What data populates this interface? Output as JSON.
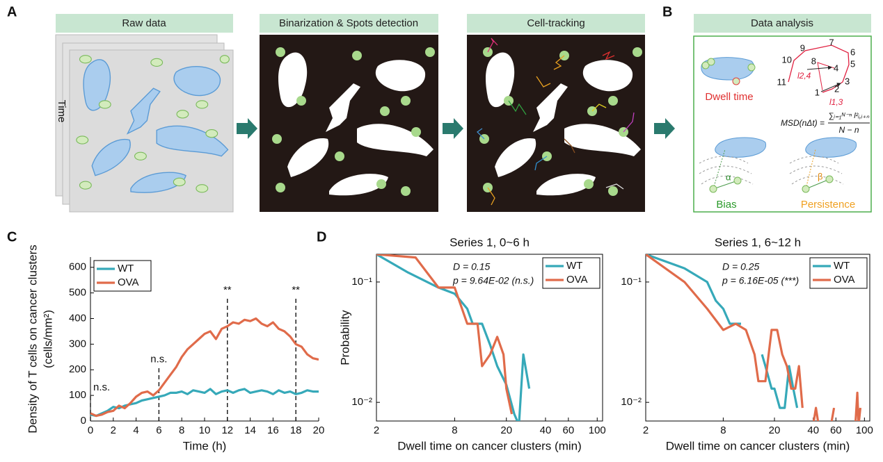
{
  "figure": {
    "panel_labels": [
      "A",
      "B",
      "C",
      "D"
    ],
    "steps": [
      "Raw data",
      "Binarization & Spots detection",
      "Cell-tracking",
      "Data analysis"
    ],
    "time_label": "Time",
    "analysis": {
      "dwell_time": "Dwell time",
      "bias": "Bias",
      "persistence": "Persistence",
      "msd_left": "MSD(nΔt) =",
      "msd_numerator": "∑ᵢ₌₁ᴺ⁻ⁿ l²ᵢ,ᵢ₊ₙ",
      "msd_denominator": "N − n",
      "track_numbers": [
        "1",
        "2",
        "3",
        "4",
        "5",
        "6",
        "7",
        "8",
        "9",
        "10",
        "11"
      ],
      "l24": "l2,4",
      "l13": "l1,3",
      "alpha": "α",
      "beta": "β"
    }
  },
  "chart_data": [
    {
      "type": "line",
      "xlabel": "Time (h)",
      "ylabel": [
        "Density of T cells on cancer clusters",
        "(cells/mm²)"
      ],
      "x": [
        0,
        0.5,
        1,
        1.5,
        2,
        2.5,
        3,
        3.5,
        4,
        4.5,
        5,
        5.5,
        6,
        6.5,
        7,
        7.5,
        8,
        8.5,
        9,
        9.5,
        10,
        10.5,
        11,
        11.5,
        12,
        12.5,
        13,
        13.5,
        14,
        14.5,
        15,
        15.5,
        16,
        16.5,
        17,
        17.5,
        18,
        18.5,
        19,
        19.5,
        20
      ],
      "series": [
        {
          "name": "WT",
          "color": "#36a9b9",
          "values": [
            25,
            20,
            30,
            40,
            55,
            50,
            60,
            65,
            70,
            80,
            85,
            90,
            95,
            100,
            110,
            110,
            115,
            105,
            120,
            115,
            110,
            125,
            105,
            115,
            120,
            110,
            120,
            125,
            110,
            115,
            120,
            115,
            105,
            120,
            110,
            115,
            105,
            110,
            120,
            115,
            115
          ]
        },
        {
          "name": "OVA",
          "color": "#e06b4a",
          "values": [
            30,
            20,
            25,
            35,
            40,
            60,
            50,
            70,
            95,
            110,
            115,
            100,
            120,
            150,
            180,
            210,
            250,
            280,
            300,
            320,
            340,
            350,
            320,
            360,
            370,
            385,
            380,
            395,
            390,
            400,
            380,
            370,
            385,
            360,
            350,
            330,
            300,
            290,
            260,
            245,
            240
          ]
        }
      ],
      "xlim": [
        0,
        20
      ],
      "ylim": [
        0,
        640
      ],
      "xticks": [
        0,
        2,
        4,
        6,
        8,
        10,
        12,
        14,
        16,
        18,
        20
      ],
      "yticks": [
        0,
        100,
        200,
        300,
        400,
        500,
        600
      ],
      "legend": "upper left",
      "box": false,
      "annotations": [
        {
          "label": "n.s.",
          "x": 0,
          "y": 130
        },
        {
          "label": "n.s.",
          "x": 6,
          "y": 240
        },
        {
          "label": "**",
          "x": 12,
          "y": 510
        },
        {
          "label": "**",
          "x": 18,
          "y": 510
        }
      ]
    },
    {
      "type": "line",
      "title": "Series 1, 0~6 h",
      "stats": [
        "D = 0.15",
        "p = 9.64E-02 (n.s.)"
      ],
      "xlabel": "Dwell time on cancer clusters (min)",
      "ylabel": [
        "Probability"
      ],
      "series": [
        {
          "name": "WT",
          "color": "#36a9b9",
          "x": [
            2,
            3.5,
            6,
            8,
            10,
            11,
            13,
            15,
            17,
            20,
            23,
            25,
            27,
            30
          ],
          "values": [
            0.17,
            0.12,
            0.09,
            0.08,
            0.06,
            0.045,
            0.045,
            0.03,
            0.02,
            0.014,
            0.008,
            0.0065,
            0.025,
            0.013
          ]
        },
        {
          "name": "OVA",
          "color": "#e06b4a",
          "x": [
            2,
            4,
            6,
            8,
            10,
            12,
            13,
            15,
            17,
            19,
            20,
            22
          ],
          "values": [
            0.17,
            0.16,
            0.09,
            0.09,
            0.045,
            0.045,
            0.02,
            0.025,
            0.035,
            0.025,
            0.013,
            0.008
          ]
        }
      ],
      "xlim": [
        2,
        110
      ],
      "ylim": [
        0.007,
        0.17
      ],
      "log_x": true,
      "log_y": true,
      "xticks": [
        2,
        8,
        20,
        40,
        60,
        100
      ],
      "yticks": [
        {
          "value": 0.01,
          "label": "10⁻²"
        },
        {
          "value": 0.1,
          "label": "10⁻¹"
        }
      ],
      "legend": "upper right",
      "box": true
    },
    {
      "type": "line",
      "title": "Series 1, 6~12 h",
      "stats": [
        "D = 0.25",
        "p = 6.16E-05 (***)"
      ],
      "xlabel": "Dwell time on cancer clusters (min)",
      "series": [
        {
          "name": "WT",
          "color": "#36a9b9",
          "x": [
            2,
            4,
            6,
            7,
            8,
            9,
            11,
            null,
            16,
            17,
            19,
            20,
            22,
            24,
            26,
            28,
            30
          ],
          "values": [
            0.17,
            0.13,
            0.1,
            0.07,
            0.06,
            0.045,
            0.045,
            null,
            0.025,
            0.02,
            0.013,
            0.013,
            0.009,
            0.009,
            0.02,
            0.013,
            0.009
          ]
        },
        {
          "name": "OVA",
          "color": "#e06b4a",
          "x": [
            2,
            4,
            6,
            8,
            10,
            12,
            14,
            15,
            17,
            19,
            21,
            23,
            25,
            27,
            29,
            31,
            33,
            null,
            40,
            42,
            44,
            null,
            55,
            58,
            null,
            85,
            88,
            90,
            93
          ],
          "values": [
            0.17,
            0.1,
            0.06,
            0.04,
            0.045,
            0.04,
            0.025,
            0.015,
            0.015,
            0.04,
            0.04,
            0.025,
            0.02,
            0.013,
            0.013,
            0.02,
            0.009,
            null,
            0.0065,
            0.009,
            0.0065,
            null,
            0.0065,
            0.009,
            null,
            0.0065,
            0.012,
            0.0065,
            0.009
          ]
        }
      ],
      "xlim": [
        2,
        110
      ],
      "ylim": [
        0.007,
        0.17
      ],
      "log_x": true,
      "log_y": true,
      "xticks": [
        2,
        8,
        20,
        40,
        60,
        100
      ],
      "yticks": [
        {
          "value": 0.01,
          "label": "10⁻²"
        },
        {
          "value": 0.1,
          "label": "10⁻¹"
        }
      ],
      "legend": "upper right",
      "box": true
    }
  ]
}
